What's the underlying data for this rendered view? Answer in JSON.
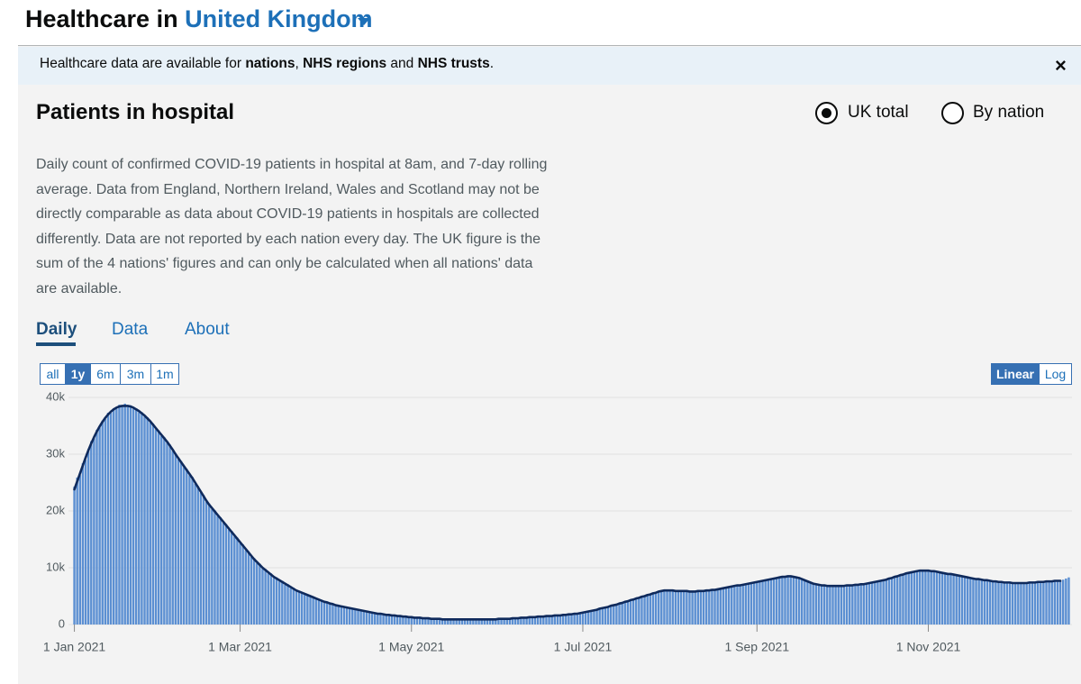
{
  "header": {
    "title": "Healthcare in",
    "area": "United Kingdom"
  },
  "banner": {
    "parts": [
      "Healthcare data are available for ",
      "nations",
      ", ",
      "NHS regions",
      " and ",
      "NHS trusts",
      "."
    ],
    "close": "×"
  },
  "card": {
    "title": "Patients in hospital",
    "options": [
      "UK total",
      "By nation"
    ],
    "description": "Daily count of confirmed COVID-19 patients in hospital at 8am, and 7-day rolling average. Data from England, Northern Ireland, Wales and Scotland may not be directly comparable as data about COVID-19 patients in hospitals are collected differently. Data are not reported by each nation every day. The UK figure is the sum of the 4 nations' figures and can only be calculated when all nations' data are available.",
    "tabs": [
      "Daily",
      "Data",
      "About"
    ],
    "ranges": [
      "all",
      "1y",
      "6m",
      "3m",
      "1m"
    ],
    "scales": [
      "Linear",
      "Log"
    ]
  },
  "chart_data": {
    "type": "bar",
    "categories": [
      "1 Jan 2021",
      null,
      null,
      null,
      null,
      null,
      null,
      null,
      null,
      null,
      null,
      null,
      null,
      null,
      null,
      null,
      null,
      null,
      null,
      null,
      null,
      null,
      null,
      null,
      null,
      null,
      null,
      null,
      null,
      null,
      null,
      null,
      null,
      null,
      null,
      null,
      null,
      null,
      null,
      null,
      null,
      null,
      null,
      null,
      null,
      null,
      null,
      null,
      null,
      null,
      null,
      null,
      null,
      null,
      null,
      null,
      null,
      null,
      null,
      "1 Mar 2021",
      null,
      null,
      null,
      null,
      null,
      null,
      null,
      null,
      null,
      null,
      null,
      null,
      null,
      null,
      null,
      null,
      null,
      null,
      null,
      null,
      null,
      null,
      null,
      null,
      null,
      null,
      null,
      null,
      null,
      null,
      null,
      null,
      null,
      null,
      null,
      null,
      null,
      null,
      null,
      null,
      null,
      null,
      null,
      null,
      null,
      null,
      null,
      null,
      null,
      null,
      null,
      null,
      null,
      null,
      null,
      null,
      null,
      null,
      null,
      null,
      "1 May 2021",
      null,
      null,
      null,
      null,
      null,
      null,
      null,
      null,
      null,
      null,
      null,
      null,
      null,
      null,
      null,
      null,
      null,
      null,
      null,
      null,
      null,
      null,
      null,
      null,
      null,
      null,
      null,
      null,
      null,
      null,
      null,
      null,
      null,
      null,
      null,
      null,
      null,
      null,
      null,
      null,
      null,
      null,
      null,
      null,
      null,
      null,
      null,
      null,
      null,
      null,
      null,
      null,
      null,
      null,
      null,
      null,
      null,
      null,
      null,
      null,
      "1 Jul 2021",
      null,
      null,
      null,
      null,
      null,
      null,
      null,
      null,
      null,
      null,
      null,
      null,
      null,
      null,
      null,
      null,
      null,
      null,
      null,
      null,
      null,
      null,
      null,
      null,
      null,
      null,
      null,
      null,
      null,
      null,
      null,
      null,
      null,
      null,
      null,
      null,
      null,
      null,
      null,
      null,
      null,
      null,
      null,
      null,
      null,
      null,
      null,
      null,
      null,
      null,
      null,
      null,
      null,
      null,
      null,
      null,
      null,
      null,
      null,
      null,
      null,
      "1 Sep 2021",
      null,
      null,
      null,
      null,
      null,
      null,
      null,
      null,
      null,
      null,
      null,
      null,
      null,
      null,
      null,
      null,
      null,
      null,
      null,
      null,
      null,
      null,
      null,
      null,
      null,
      null,
      null,
      null,
      null,
      null,
      null,
      null,
      null,
      null,
      null,
      null,
      null,
      null,
      null,
      null,
      null,
      null,
      null,
      null,
      null,
      null,
      null,
      null,
      null,
      null,
      null,
      null,
      null,
      null,
      null,
      null,
      null,
      null,
      null,
      null,
      "1 Nov 2021",
      null,
      null,
      null,
      null,
      null,
      null,
      null,
      null,
      null,
      null,
      null,
      null,
      null,
      null,
      null,
      null,
      null,
      null,
      null,
      null,
      null,
      null,
      null,
      null,
      null,
      null,
      null,
      null,
      null,
      null,
      null,
      null,
      null,
      null,
      null,
      null,
      null,
      null,
      null,
      null,
      null,
      null,
      null,
      null,
      null,
      null,
      null,
      null,
      null,
      null
    ],
    "series": [
      {
        "color": "#5b8fd2",
        "values": [
          24300,
          25900,
          26300,
          28400,
          29000,
          30900,
          32300,
          32800,
          34300,
          34700,
          35900,
          36200,
          37300,
          37300,
          38100,
          38000,
          38700,
          38400,
          38900,
          38300,
          38600,
          38000,
          38100,
          37400,
          37400,
          36600,
          36500,
          35600,
          35400,
          34400,
          34200,
          33200,
          33000,
          32000,
          31700,
          30600,
          30200,
          29100,
          28800,
          27700,
          27400,
          26300,
          26000,
          24800,
          24400,
          23200,
          22800,
          21600,
          21300,
          20300,
          20100,
          19100,
          18900,
          17900,
          17700,
          16700,
          16500,
          15500,
          15300,
          14300,
          14100,
          13100,
          12900,
          11900,
          11700,
          10800,
          10700,
          9800,
          9800,
          9000,
          9000,
          8200,
          8300,
          7600,
          7700,
          7000,
          7100,
          6400,
          6500,
          5900,
          5900,
          5500,
          5500,
          5100,
          5100,
          4700,
          4700,
          4300,
          4300,
          3900,
          4000,
          3600,
          3700,
          3300,
          3400,
          3100,
          3200,
          2900,
          3000,
          2700,
          2800,
          2500,
          2600,
          2300,
          2400,
          2100,
          2200,
          1900,
          2000,
          1800,
          1900,
          1700,
          1800,
          1600,
          1700,
          1500,
          1600,
          1400,
          1500,
          1300,
          1400,
          1200,
          1300,
          1100,
          1200,
          1100,
          1200,
          1000,
          1100,
          1000,
          1000,
          900,
          1000,
          900,
          900,
          900,
          1000,
          900,
          900,
          900,
          900,
          900,
          1000,
          900,
          900,
          900,
          900,
          900,
          1000,
          900,
          900,
          1000,
          1100,
          1000,
          1000,
          1000,
          1100,
          1100,
          1200,
          1200,
          1200,
          1200,
          1300,
          1300,
          1400,
          1400,
          1400,
          1500,
          1500,
          1500,
          1600,
          1600,
          1700,
          1600,
          1700,
          1700,
          1800,
          1800,
          1900,
          1900,
          2000,
          2100,
          2200,
          2300,
          2500,
          2500,
          2700,
          2800,
          3000,
          3000,
          3200,
          3300,
          3500,
          3500,
          3800,
          3800,
          4100,
          4100,
          4400,
          4400,
          4700,
          4700,
          5000,
          5000,
          5300,
          5300,
          5600,
          5600,
          5900,
          5900,
          6100,
          6000,
          6000,
          5900,
          5900,
          5800,
          6000,
          5900,
          5900,
          5800,
          5900,
          5800,
          5900,
          5800,
          6000,
          6000,
          6100,
          6100,
          6200,
          6200,
          6300,
          6400,
          6600,
          6600,
          6800,
          6800,
          6900,
          6900,
          7100,
          7100,
          7300,
          7300,
          7500,
          7500,
          7700,
          7700,
          7900,
          7900,
          8100,
          8100,
          8300,
          8300,
          8500,
          8400,
          8600,
          8500,
          8400,
          8300,
          8200,
          7900,
          7800,
          7500,
          7400,
          7100,
          7100,
          6900,
          6900,
          6800,
          6800,
          6700,
          6800,
          6700,
          6800,
          6800,
          6900,
          6900,
          7000,
          6900,
          7100,
          7000,
          7200,
          7100,
          7300,
          7300,
          7500,
          7500,
          7700,
          7700,
          7900,
          7900,
          8200,
          8200,
          8500,
          8500,
          8800,
          8800,
          9100,
          9100,
          9300,
          9300,
          9500,
          9500,
          9600,
          9500,
          9500,
          9400,
          9400,
          9200,
          9200,
          9000,
          9000,
          8900,
          8800,
          8700,
          8700,
          8500,
          8500,
          8300,
          8300,
          8100,
          8100,
          7900,
          8000,
          7800,
          7800,
          7700,
          7700,
          7500,
          7600,
          7400,
          7500,
          7300,
          7400,
          7300,
          7300,
          7200,
          7300,
          7300,
          7400,
          7300,
          7500,
          7400,
          7500,
          7500,
          7600,
          7500,
          7700,
          7600,
          7700,
          7700,
          7800,
          7700,
          7900,
          8100,
          8300
        ]
      },
      {
        "type": "line",
        "color": "#0f2a5c",
        "values": [
          23800,
          25200,
          26600,
          28000,
          29400,
          30700,
          31900,
          33000,
          34000,
          34900,
          35700,
          36400,
          37000,
          37500,
          37900,
          38200,
          38400,
          38500,
          38500,
          38500,
          38400,
          38200,
          37900,
          37600,
          37200,
          36800,
          36300,
          35800,
          35200,
          34600,
          34000,
          33400,
          32800,
          32200,
          31500,
          30800,
          30000,
          29300,
          28600,
          27900,
          27200,
          26500,
          25800,
          25000,
          24200,
          23400,
          22600,
          21800,
          21100,
          20500,
          19900,
          19300,
          18700,
          18100,
          17500,
          16900,
          16300,
          15700,
          15100,
          14500,
          13900,
          13300,
          12700,
          12100,
          11500,
          11000,
          10500,
          10000,
          9600,
          9200,
          8800,
          8400,
          8100,
          7800,
          7500,
          7200,
          6900,
          6600,
          6300,
          6000,
          5800,
          5600,
          5400,
          5200,
          5000,
          4800,
          4600,
          4400,
          4200,
          4000,
          3900,
          3700,
          3600,
          3400,
          3300,
          3200,
          3100,
          3000,
          2900,
          2800,
          2700,
          2600,
          2500,
          2400,
          2300,
          2200,
          2100,
          2000,
          1900,
          1900,
          1800,
          1700,
          1700,
          1600,
          1600,
          1500,
          1500,
          1400,
          1400,
          1300,
          1300,
          1200,
          1200,
          1200,
          1100,
          1100,
          1100,
          1000,
          1000,
          1000,
          1000,
          900,
          900,
          900,
          900,
          900,
          900,
          900,
          900,
          900,
          900,
          900,
          900,
          900,
          900,
          900,
          900,
          900,
          900,
          900,
          900,
          1000,
          1000,
          1000,
          1000,
          1000,
          1100,
          1100,
          1100,
          1200,
          1200,
          1200,
          1300,
          1300,
          1300,
          1400,
          1400,
          1400,
          1500,
          1500,
          1500,
          1600,
          1600,
          1600,
          1700,
          1700,
          1800,
          1800,
          1900,
          1900,
          2000,
          2100,
          2200,
          2300,
          2400,
          2500,
          2600,
          2800,
          2900,
          3000,
          3100,
          3300,
          3400,
          3500,
          3700,
          3800,
          4000,
          4100,
          4300,
          4400,
          4600,
          4700,
          4900,
          5000,
          5200,
          5300,
          5500,
          5600,
          5800,
          5900,
          6000,
          6000,
          6000,
          6000,
          5900,
          5900,
          5900,
          5900,
          5900,
          5800,
          5800,
          5800,
          5900,
          5900,
          5900,
          6000,
          6000,
          6100,
          6100,
          6200,
          6300,
          6400,
          6500,
          6600,
          6700,
          6800,
          6900,
          6900,
          7000,
          7100,
          7200,
          7300,
          7400,
          7500,
          7600,
          7700,
          7800,
          7900,
          8000,
          8100,
          8200,
          8300,
          8400,
          8400,
          8500,
          8500,
          8400,
          8300,
          8200,
          8000,
          7800,
          7600,
          7400,
          7200,
          7100,
          7000,
          6900,
          6900,
          6800,
          6800,
          6800,
          6800,
          6800,
          6800,
          6800,
          6900,
          6900,
          6900,
          7000,
          7000,
          7100,
          7100,
          7200,
          7300,
          7400,
          7500,
          7600,
          7700,
          7800,
          7900,
          8100,
          8200,
          8400,
          8500,
          8700,
          8800,
          9000,
          9100,
          9200,
          9300,
          9400,
          9500,
          9500,
          9500,
          9500,
          9400,
          9400,
          9300,
          9200,
          9100,
          9000,
          8900,
          8900,
          8800,
          8700,
          8600,
          8500,
          8400,
          8300,
          8200,
          8100,
          8000,
          8000,
          7900,
          7800,
          7800,
          7700,
          7600,
          7600,
          7500,
          7500,
          7400,
          7400,
          7400,
          7300,
          7300,
          7300,
          7300,
          7300,
          7300,
          7400,
          7400,
          7400,
          7500,
          7500,
          7500,
          7600,
          7600,
          7600,
          7700,
          7700,
          7700,
          null,
          null,
          null
        ]
      }
    ],
    "ylim": [
      0,
      40000
    ],
    "yticks": [
      0,
      {
        "value": 10000,
        "label": "10k"
      },
      {
        "value": 20000,
        "label": "20k"
      },
      {
        "value": 30000,
        "label": "30k"
      },
      {
        "value": 40000,
        "label": "40k"
      }
    ],
    "grid": true
  }
}
